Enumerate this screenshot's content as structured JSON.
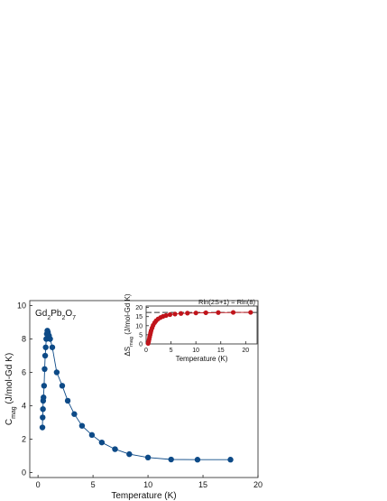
{
  "chart_data": [
    {
      "type": "line",
      "title_parts": [
        "Gd",
        "2",
        "Pb",
        "2",
        "O",
        "7"
      ],
      "x_label": "Temperature (K)",
      "y_label_parts": [
        "C",
        "mag",
        " (J/mol-Gd K)"
      ],
      "xlim": [
        -0.75,
        20
      ],
      "ylim": [
        -0.3,
        10.3
      ],
      "xticks": [
        0,
        5,
        10,
        15,
        20
      ],
      "yticks": [
        0,
        2,
        4,
        6,
        8,
        10
      ],
      "series": [
        {
          "color": "#0d4a87",
          "x": [
            0.4,
            0.42,
            0.45,
            0.47,
            0.5,
            0.55,
            0.6,
            0.65,
            0.7,
            0.75,
            0.8,
            0.85,
            0.9,
            1.0,
            1.1,
            1.3,
            1.7,
            2.2,
            2.7,
            3.3,
            4.0,
            4.9,
            5.8,
            7.0,
            8.3,
            10.0,
            12.1,
            14.5,
            17.5
          ],
          "values": [
            2.7,
            3.3,
            3.8,
            4.3,
            4.5,
            5.2,
            6.2,
            7.0,
            7.5,
            8.0,
            8.3,
            8.5,
            8.4,
            8.2,
            8.0,
            7.5,
            6.0,
            5.2,
            4.3,
            3.5,
            2.8,
            2.25,
            1.8,
            1.4,
            1.1,
            0.9,
            0.78,
            0.77,
            0.77
          ]
        }
      ]
    },
    {
      "type": "line",
      "x_label": "Temperature (K)",
      "y_label_parts": [
        "ΔS",
        "mag",
        " (J/mol-Gd K)"
      ],
      "annotation": "Rln(2S+1) = Rln(8)",
      "reference_line": 17.29,
      "xlim": [
        0,
        22.3
      ],
      "ylim": [
        0,
        20.8
      ],
      "xticks": [
        0,
        5,
        10,
        15,
        20
      ],
      "yticks": [
        0,
        5,
        10,
        15,
        20
      ],
      "series": [
        {
          "color": "#c0141b",
          "x": [
            0.4,
            0.5,
            0.6,
            0.7,
            0.8,
            0.9,
            1.0,
            1.2,
            1.4,
            1.7,
            2.0,
            2.4,
            2.9,
            3.4,
            4.0,
            4.8,
            5.8,
            7.0,
            8.3,
            10.0,
            12.0,
            14.5,
            17.5,
            21.0
          ],
          "values": [
            0.3,
            1.3,
            2.5,
            3.8,
            5.0,
            6.2,
            7.3,
            8.8,
            10.2,
            11.6,
            12.7,
            13.7,
            14.5,
            15.1,
            15.6,
            16.1,
            16.4,
            16.7,
            16.9,
            17.0,
            17.1,
            17.2,
            17.3,
            17.3
          ]
        }
      ]
    }
  ]
}
